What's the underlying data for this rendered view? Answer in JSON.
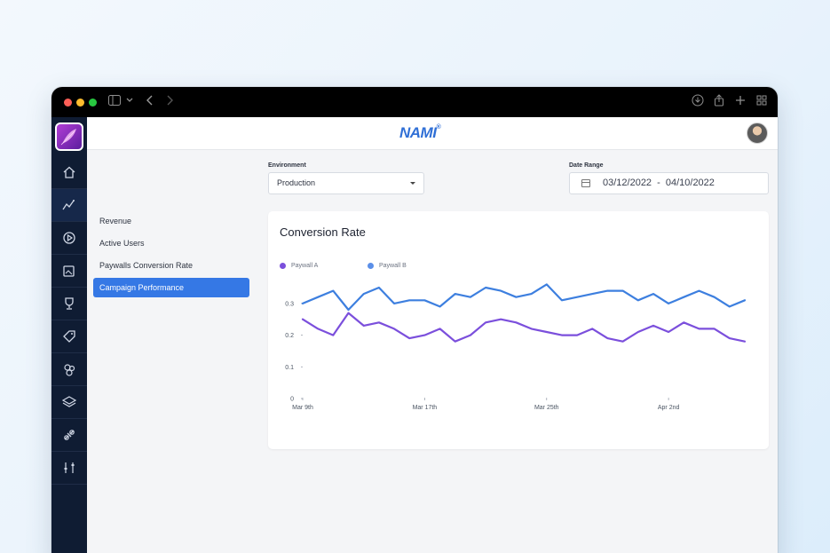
{
  "window": {
    "brand_name": "NAMI",
    "brand_mark": "®"
  },
  "sidebar": {
    "icons": [
      "home-icon",
      "analytics-icon",
      "campaign-icon",
      "paywalls-icon",
      "trophy-icon",
      "tag-icon",
      "users-icon",
      "layers-icon",
      "integration-icon",
      "settings-sliders-icon"
    ],
    "active_index": 1
  },
  "left_nav": {
    "items": [
      {
        "label": "Revenue",
        "active": false
      },
      {
        "label": "Active Users",
        "active": false
      },
      {
        "label": "Paywalls Conversion Rate",
        "active": false
      },
      {
        "label": "Campaign Performance",
        "active": true
      }
    ]
  },
  "filters": {
    "environment_label": "Environment",
    "environment_value": "Production",
    "date_range_label": "Date Range",
    "date_start": "03/12/2022",
    "date_separator": "-",
    "date_end": "04/10/2022"
  },
  "colors": {
    "accent": "#3578e5",
    "sidebar": "#0f1c33",
    "paywall_a": "#7b4fdc",
    "paywall_b": "#3d7fdf"
  },
  "chart_data": {
    "type": "line",
    "title": "Conversion Rate",
    "xlabel": "",
    "ylabel": "",
    "legend_position": "top-left",
    "ylim": [
      0,
      0.35
    ],
    "y_ticks": [
      0,
      0.1,
      0.2,
      0.3
    ],
    "y_tick_labels": [
      "0",
      "0.1",
      "0.2",
      "0.3"
    ],
    "x_tick_labels": [
      "Mar 9th",
      "Mar 17th",
      "Mar 25th",
      "Apr 2nd"
    ],
    "x_tick_indices": [
      0,
      8,
      16,
      24
    ],
    "series": [
      {
        "name": "Paywall A",
        "color": "#7b4fdc",
        "values": [
          0.25,
          0.22,
          0.2,
          0.27,
          0.23,
          0.24,
          0.22,
          0.19,
          0.2,
          0.22,
          0.18,
          0.2,
          0.24,
          0.25,
          0.24,
          0.22,
          0.21,
          0.2,
          0.2,
          0.22,
          0.19,
          0.18,
          0.21,
          0.23,
          0.21,
          0.24,
          0.22,
          0.22,
          0.19,
          0.18
        ]
      },
      {
        "name": "Paywall B",
        "color": "#3d7fdf",
        "values": [
          0.3,
          0.32,
          0.34,
          0.28,
          0.33,
          0.35,
          0.3,
          0.31,
          0.31,
          0.29,
          0.33,
          0.32,
          0.35,
          0.34,
          0.32,
          0.33,
          0.36,
          0.31,
          0.32,
          0.33,
          0.34,
          0.34,
          0.31,
          0.33,
          0.3,
          0.32,
          0.34,
          0.32,
          0.29,
          0.31
        ]
      }
    ]
  }
}
